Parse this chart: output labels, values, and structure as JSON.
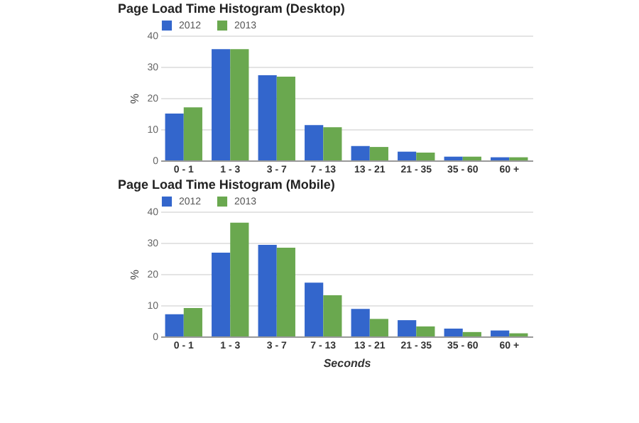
{
  "chart_data": [
    {
      "type": "bar",
      "title": "Page Load Time Histogram (Desktop)",
      "ylabel": "%",
      "categories": [
        "0 - 1",
        "1 - 3",
        "3 - 7",
        "7 - 13",
        "13 - 21",
        "21 - 35",
        "35 - 60",
        "60 +"
      ],
      "series": [
        {
          "name": "2012",
          "color": "#3366cc",
          "values": [
            15.0,
            35.6,
            27.3,
            11.3,
            4.6,
            2.8,
            1.2,
            1.0
          ]
        },
        {
          "name": "2013",
          "color": "#6aa84f",
          "values": [
            17.0,
            35.6,
            26.8,
            10.6,
            4.3,
            2.5,
            1.2,
            1.0
          ]
        }
      ],
      "ylim": [
        0,
        40
      ],
      "yticks": [
        0,
        10,
        20,
        30,
        40
      ],
      "grid": "y",
      "legend": "top left"
    },
    {
      "type": "bar",
      "title": "Page Load Time Histogram (Mobile)",
      "ylabel": "%",
      "xlabel": "Seconds",
      "categories": [
        "0 - 1",
        "1 - 3",
        "3 - 7",
        "7 - 13",
        "13 - 21",
        "21 - 35",
        "35 - 60",
        "60 +"
      ],
      "series": [
        {
          "name": "2012",
          "color": "#3366cc",
          "values": [
            7.1,
            26.8,
            29.3,
            17.2,
            8.8,
            5.2,
            2.5,
            1.9
          ]
        },
        {
          "name": "2013",
          "color": "#6aa84f",
          "values": [
            9.1,
            36.4,
            28.4,
            13.2,
            5.6,
            3.2,
            1.4,
            1.0
          ]
        }
      ],
      "ylim": [
        0,
        40
      ],
      "yticks": [
        0,
        10,
        20,
        30,
        40
      ],
      "grid": "y",
      "legend": "top left"
    }
  ]
}
